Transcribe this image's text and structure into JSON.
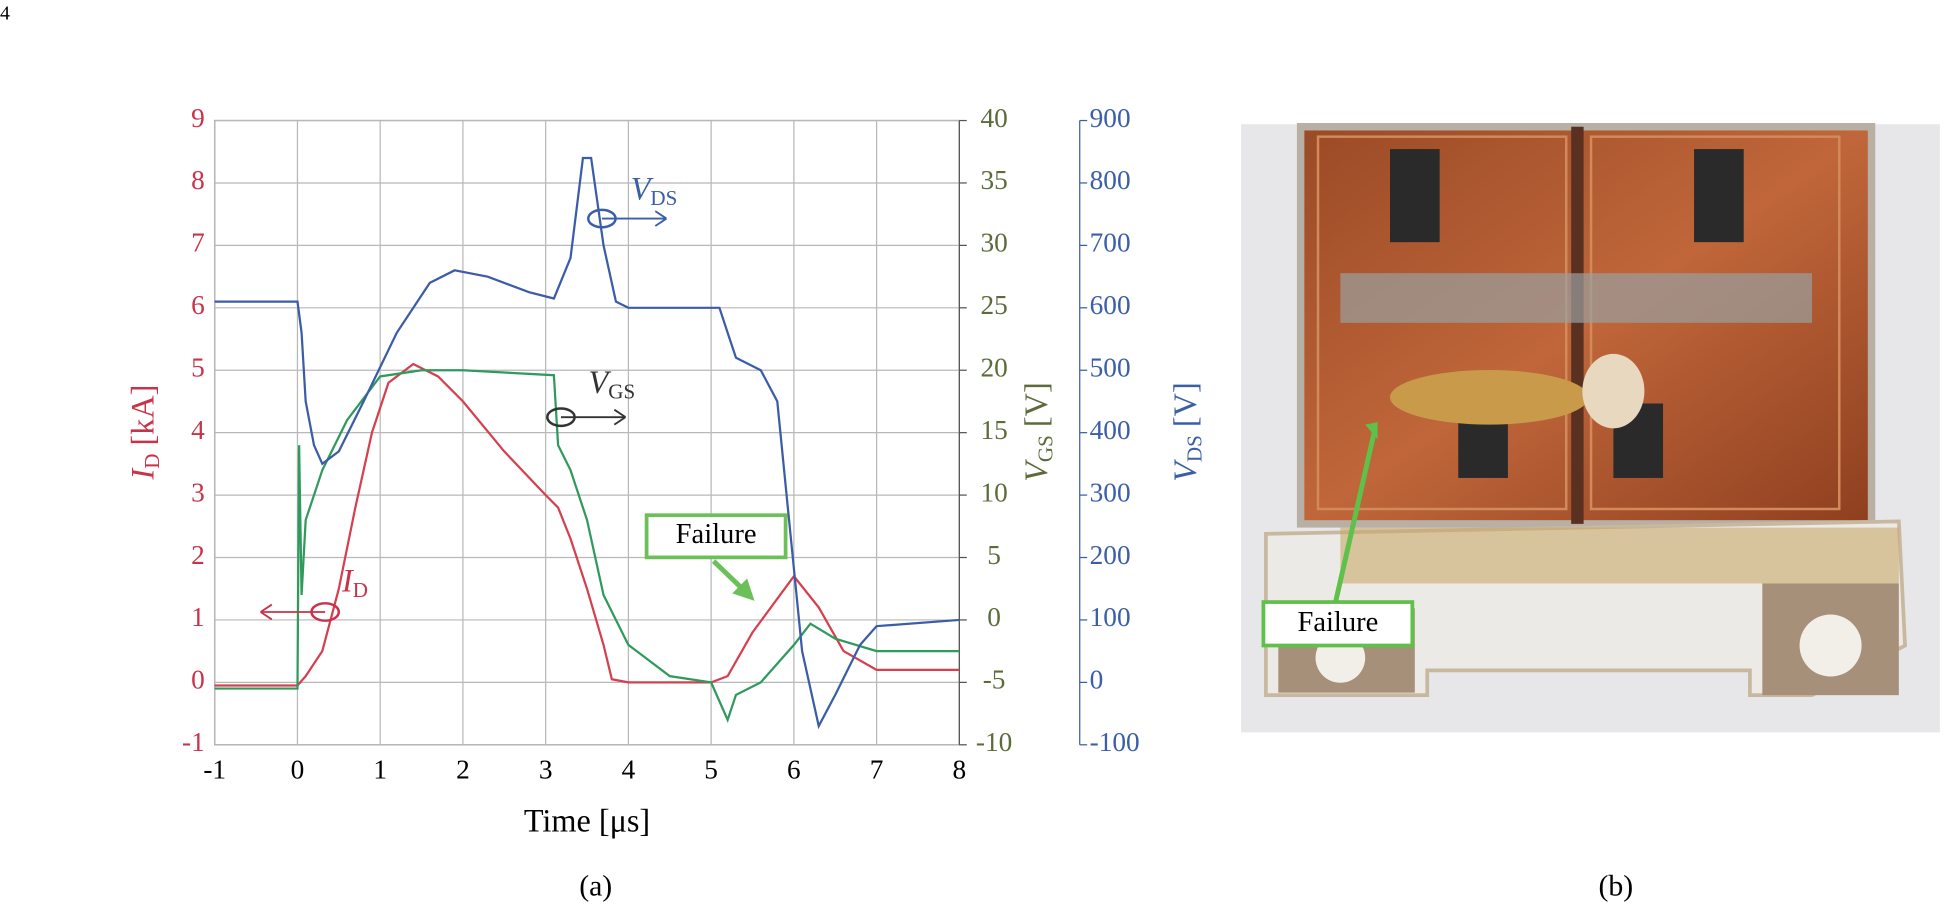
{
  "page_number": "4",
  "chart_data": {
    "type": "line",
    "x_label": "Time [μs]",
    "xlim": [
      -1,
      8
    ],
    "xticks": [
      -1,
      0,
      1,
      2,
      3,
      4,
      5,
      6,
      7,
      8
    ],
    "ylim": [
      -1,
      9
    ],
    "yticks": [
      -1,
      0,
      1,
      2,
      3,
      4,
      5,
      6,
      7,
      8,
      9
    ],
    "y_label": {
      "symbol": "I",
      "subscript": "D",
      "unit": " [kA]"
    },
    "y2lim": [
      -10,
      40
    ],
    "y2ticks": [
      -10,
      -5,
      0,
      5,
      10,
      15,
      20,
      25,
      30,
      35,
      40
    ],
    "y2_label": {
      "symbol": "V",
      "subscript": "GS",
      "unit": " [V]"
    },
    "y3lim": [
      -100,
      900
    ],
    "y3ticks": [
      -100,
      0,
      100,
      200,
      300,
      400,
      500,
      600,
      700,
      800,
      900
    ],
    "y3_label": {
      "symbol": "V",
      "subscript": "DS",
      "unit": " [V]"
    },
    "grid": true,
    "series": [
      {
        "name": {
          "symbol": "I",
          "subscript": "D"
        },
        "color": "#d5404f",
        "axis": "y",
        "x": [
          -1,
          0,
          0.1,
          0.3,
          0.5,
          0.7,
          0.9,
          1.1,
          1.4,
          1.7,
          2,
          2.5,
          3,
          3.15,
          3.3,
          3.5,
          3.7,
          3.8,
          4,
          5,
          5.2,
          5.5,
          6,
          6.3,
          6.6,
          7,
          8
        ],
        "values": [
          -0.05,
          -0.05,
          0.1,
          0.5,
          1.5,
          2.8,
          4,
          4.8,
          5.1,
          4.9,
          4.5,
          3.7,
          3,
          2.8,
          2.3,
          1.5,
          0.6,
          0.05,
          0,
          0,
          0.1,
          0.8,
          1.7,
          1.2,
          0.5,
          0.2,
          0.2
        ]
      },
      {
        "name": {
          "symbol": "V",
          "subscript": "GS"
        },
        "color": "#2f9a5c",
        "axis": "y2",
        "x": [
          -1,
          0,
          0.02,
          0.05,
          0.1,
          0.3,
          0.6,
          1,
          1.5,
          2,
          3.1,
          3.15,
          3.3,
          3.5,
          3.7,
          4,
          4.5,
          5,
          5.2,
          5.3,
          5.6,
          6,
          6.2,
          6.5,
          7,
          8
        ],
        "values": [
          -5.5,
          -5.5,
          14,
          2,
          8,
          12,
          16,
          19.5,
          20,
          20,
          19.6,
          14,
          12,
          8,
          2,
          -2,
          -4.5,
          -5,
          -8,
          -6,
          -5,
          -2,
          -0.3,
          -1.5,
          -2.5,
          -2.5
        ]
      },
      {
        "name": {
          "symbol": "V",
          "subscript": "DS"
        },
        "color": "#3b5ca6",
        "axis": "y3",
        "x": [
          -1,
          0,
          0.05,
          0.1,
          0.2,
          0.3,
          0.5,
          0.8,
          1.2,
          1.6,
          1.9,
          2.3,
          2.8,
          3.1,
          3.3,
          3.45,
          3.55,
          3.7,
          3.85,
          4,
          5.1,
          5.2,
          5.3,
          5.6,
          5.8,
          5.95,
          6.1,
          6.3,
          6.5,
          6.8,
          7,
          8
        ],
        "values": [
          610,
          610,
          560,
          450,
          380,
          350,
          370,
          450,
          560,
          640,
          660,
          650,
          625,
          615,
          680,
          840,
          840,
          700,
          610,
          600,
          600,
          560,
          520,
          500,
          450,
          250,
          50,
          -70,
          -20,
          60,
          90,
          100
        ]
      }
    ],
    "annotation_failure": "Failure",
    "caption": "(a)"
  },
  "photo": {
    "annotation": "Failure",
    "caption": "(b)"
  }
}
